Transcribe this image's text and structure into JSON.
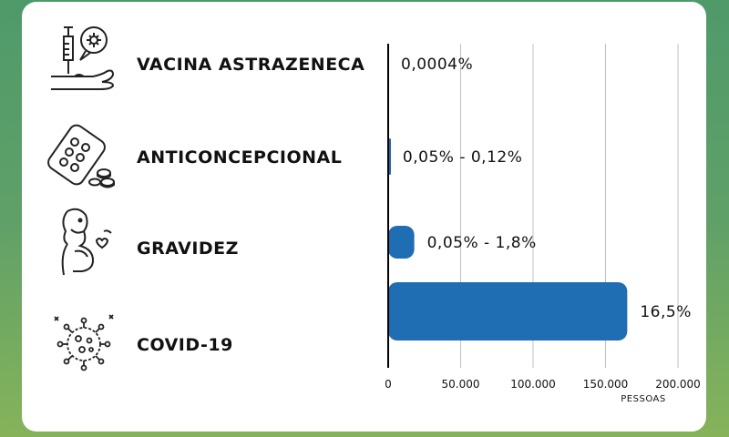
{
  "chart_data": {
    "type": "bar",
    "orientation": "horizontal",
    "categories": [
      "VACINA ASTRAZENECA",
      "ANTICONCEPCIONAL",
      "GRAVIDEZ",
      "COVID-19"
    ],
    "icons": [
      "vaccine-injection-icon",
      "contraceptive-pills-icon",
      "pregnant-woman-icon",
      "coronavirus-icon"
    ],
    "values": [
      4,
      1200,
      18000,
      165000
    ],
    "value_labels": [
      "0,0004%",
      "0,05% - 0,12%",
      "0,05% - 1,8%",
      "16,5%"
    ],
    "xticks": [
      "0",
      "50.000",
      "100.000",
      "150.000",
      "200.000"
    ],
    "xtick_values": [
      0,
      50000,
      100000,
      150000,
      200000
    ],
    "xunit": "PESSOAS",
    "xlim": [
      0,
      200000
    ],
    "grid": true,
    "bar_color": "#1f6db3"
  }
}
